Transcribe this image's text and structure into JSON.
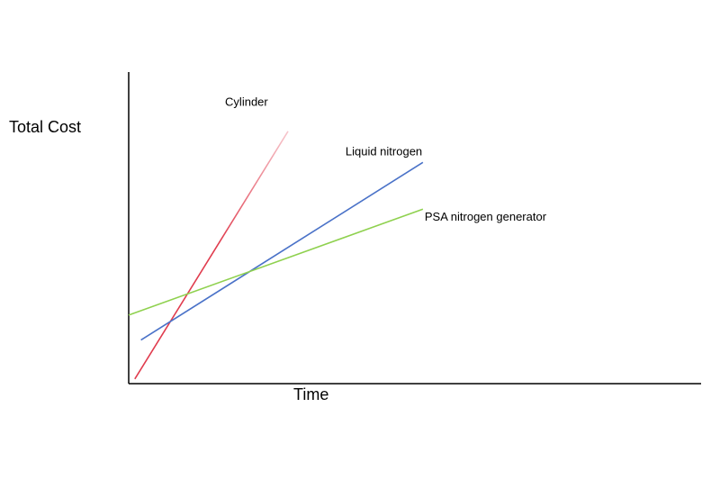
{
  "chart_data": {
    "type": "line",
    "title": "",
    "xlabel": "Time",
    "ylabel": "Total Cost",
    "xlim": [
      0,
      10
    ],
    "ylim": [
      0,
      10
    ],
    "grid": false,
    "legend": "none (series labels placed at line ends)",
    "series": [
      {
        "name": "Cylinder",
        "color": "#e03c4e",
        "fade_color": "#f7c6cc",
        "x": [
          0.15,
          3.9
        ],
        "y": [
          0.15,
          8.1
        ]
      },
      {
        "name": "Liquid nitrogen",
        "color": "#4a72c8",
        "x": [
          0.3,
          7.2
        ],
        "y": [
          1.4,
          7.1
        ]
      },
      {
        "name": "PSA nitrogen generator",
        "color": "#8fd14f",
        "x": [
          0.0,
          7.2
        ],
        "y": [
          2.2,
          5.6
        ]
      }
    ]
  }
}
